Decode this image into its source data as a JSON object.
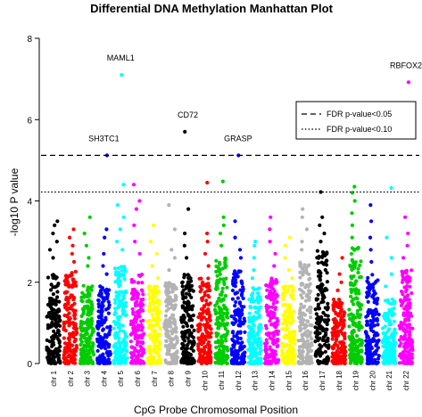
{
  "chart_data": {
    "type": "scatter",
    "title": "Differential DNA Methylation Manhattan Plot",
    "xlabel": "CpG Probe Chromosomal Position",
    "ylabel": "-log10 P value",
    "ylim": [
      0,
      8
    ],
    "yticks": [
      0,
      2,
      4,
      6,
      8
    ],
    "legend_placement": "top-right",
    "thresholds": [
      {
        "label": "FDR p-value<0.05",
        "value": 5.12,
        "style": "dashed"
      },
      {
        "label": "FDR p-value<0.10",
        "value": 4.22,
        "style": "dotted"
      }
    ],
    "chromosomes": [
      {
        "name": "chr 1",
        "color": "#000000",
        "dense_max": 2.2,
        "tail": [
          2.6,
          2.8,
          3.0,
          3.2,
          3.4,
          3.5
        ]
      },
      {
        "name": "chr 2",
        "color": "#ff0000",
        "dense_max": 2.3,
        "tail": [
          2.5,
          2.7,
          2.9,
          3.1,
          3.3
        ]
      },
      {
        "name": "chr 3",
        "color": "#00cc00",
        "dense_max": 2.0,
        "tail": [
          2.4,
          2.6,
          2.9,
          3.2,
          3.6
        ]
      },
      {
        "name": "chr 4",
        "color": "#0000ff",
        "dense_max": 1.9,
        "tail": [
          2.2,
          2.4,
          2.7,
          3.1,
          3.3,
          5.12
        ]
      },
      {
        "name": "chr 5",
        "color": "#00ffff",
        "dense_max": 2.4,
        "tail": [
          2.8,
          3.0,
          3.3,
          3.6,
          3.9,
          4.4,
          7.1
        ]
      },
      {
        "name": "chr 6",
        "color": "#ff00ff",
        "dense_max": 2.2,
        "tail": [
          2.7,
          3.0,
          3.4,
          3.8,
          4.0,
          4.4
        ]
      },
      {
        "name": "chr 7",
        "color": "#ffff00",
        "dense_max": 1.9,
        "tail": [
          2.1,
          2.4,
          2.7,
          3.0,
          3.4
        ]
      },
      {
        "name": "chr 8",
        "color": "#b3b3b3",
        "dense_max": 2.0,
        "tail": [
          2.3,
          2.6,
          2.8,
          3.3,
          3.9
        ]
      },
      {
        "name": "chr 9",
        "color": "#000000",
        "dense_max": 2.2,
        "tail": [
          2.6,
          2.9,
          3.2,
          3.8,
          5.7
        ]
      },
      {
        "name": "chr 10",
        "color": "#ff0000",
        "dense_max": 2.1,
        "tail": [
          2.4,
          2.7,
          3.0,
          3.2,
          4.45
        ]
      },
      {
        "name": "chr 11",
        "color": "#00cc00",
        "dense_max": 2.6,
        "tail": [
          2.9,
          3.2,
          3.4,
          3.6,
          4.48
        ]
      },
      {
        "name": "chr 12",
        "color": "#0000ff",
        "dense_max": 2.3,
        "tail": [
          2.6,
          2.8,
          3.1,
          3.5,
          5.12
        ]
      },
      {
        "name": "chr 13",
        "color": "#00ffff",
        "dense_max": 1.9,
        "tail": [
          2.1,
          2.3,
          2.6,
          2.9,
          3.0
        ]
      },
      {
        "name": "chr 14",
        "color": "#ff00ff",
        "dense_max": 2.1,
        "tail": [
          2.4,
          2.7,
          3.0,
          3.3,
          3.6
        ]
      },
      {
        "name": "chr 15",
        "color": "#ffff00",
        "dense_max": 1.9,
        "tail": [
          2.1,
          2.3,
          2.6,
          2.9,
          3.1
        ]
      },
      {
        "name": "chr 16",
        "color": "#b3b3b3",
        "dense_max": 2.5,
        "tail": [
          2.8,
          3.0,
          3.3,
          3.6,
          3.8
        ]
      },
      {
        "name": "chr 17",
        "color": "#000000",
        "dense_max": 2.8,
        "tail": [
          3.0,
          3.2,
          3.4,
          3.6,
          4.22
        ]
      },
      {
        "name": "chr 18",
        "color": "#ff0000",
        "dense_max": 1.6,
        "tail": [
          1.8,
          2.0,
          2.2,
          2.6
        ]
      },
      {
        "name": "chr 19",
        "color": "#00cc00",
        "dense_max": 2.9,
        "tail": [
          3.1,
          3.4,
          3.7,
          4.0,
          4.2,
          4.35
        ]
      },
      {
        "name": "chr 20",
        "color": "#0000ff",
        "dense_max": 2.2,
        "tail": [
          2.5,
          2.8,
          3.1,
          3.5,
          3.9
        ]
      },
      {
        "name": "chr 21",
        "color": "#00ffff",
        "dense_max": 1.6,
        "tail": [
          1.9,
          2.2,
          2.6,
          3.1,
          4.32
        ]
      },
      {
        "name": "chr 22",
        "color": "#ff00ff",
        "dense_max": 2.3,
        "tail": [
          2.6,
          2.9,
          3.2,
          3.6,
          6.92
        ]
      }
    ],
    "annotations": [
      {
        "text": "MAML1",
        "chr": "chr 5",
        "value": 7.1
      },
      {
        "text": "RBFOX2",
        "chr": "chr 22",
        "value": 6.92
      },
      {
        "text": "CD72",
        "chr": "chr 9",
        "value": 5.7
      },
      {
        "text": "SH3TC1",
        "chr": "chr 4",
        "value": 5.12
      },
      {
        "text": "GRASP",
        "chr": "chr 12",
        "value": 5.12
      }
    ]
  }
}
